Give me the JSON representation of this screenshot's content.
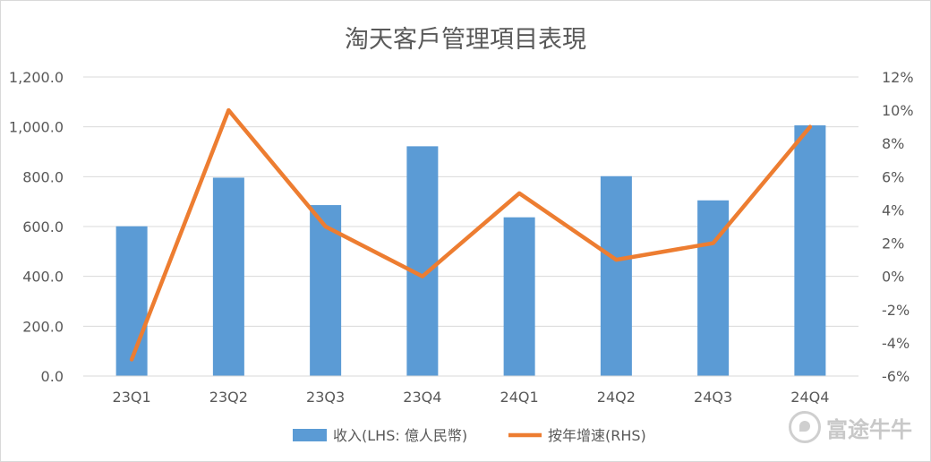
{
  "chart_data": {
    "type": "bar+line",
    "title": "淘天客戶管理項目表現",
    "categories": [
      "23Q1",
      "23Q2",
      "23Q3",
      "23Q4",
      "24Q1",
      "24Q2",
      "24Q3",
      "24Q4"
    ],
    "series": [
      {
        "name": "收入(LHS: 億人民幣)",
        "type": "bar",
        "axis": "left",
        "color": "#5b9bd5",
        "values": [
          601,
          796,
          686,
          922,
          637,
          802,
          705,
          1006
        ]
      },
      {
        "name": "按年增速(RHS)",
        "type": "line",
        "axis": "right",
        "color": "#ed7d31",
        "values": [
          -5,
          10,
          3,
          0,
          5,
          1,
          2,
          9
        ]
      }
    ],
    "y_left": {
      "min": 0,
      "max": 1200,
      "step": 200,
      "tick_labels": [
        "0.0",
        "200.0",
        "400.0",
        "600.0",
        "800.0",
        "1,000.0",
        "1,200.0"
      ]
    },
    "y_right": {
      "min": -6,
      "max": 12,
      "step": 2,
      "tick_labels": [
        "-6%",
        "-4%",
        "-2%",
        "0%",
        "2%",
        "4%",
        "6%",
        "8%",
        "10%",
        "12%"
      ]
    },
    "grid": true,
    "legend_position": "bottom"
  },
  "watermark": {
    "text": "富途牛牛",
    "icon": "futu-logo-icon"
  }
}
